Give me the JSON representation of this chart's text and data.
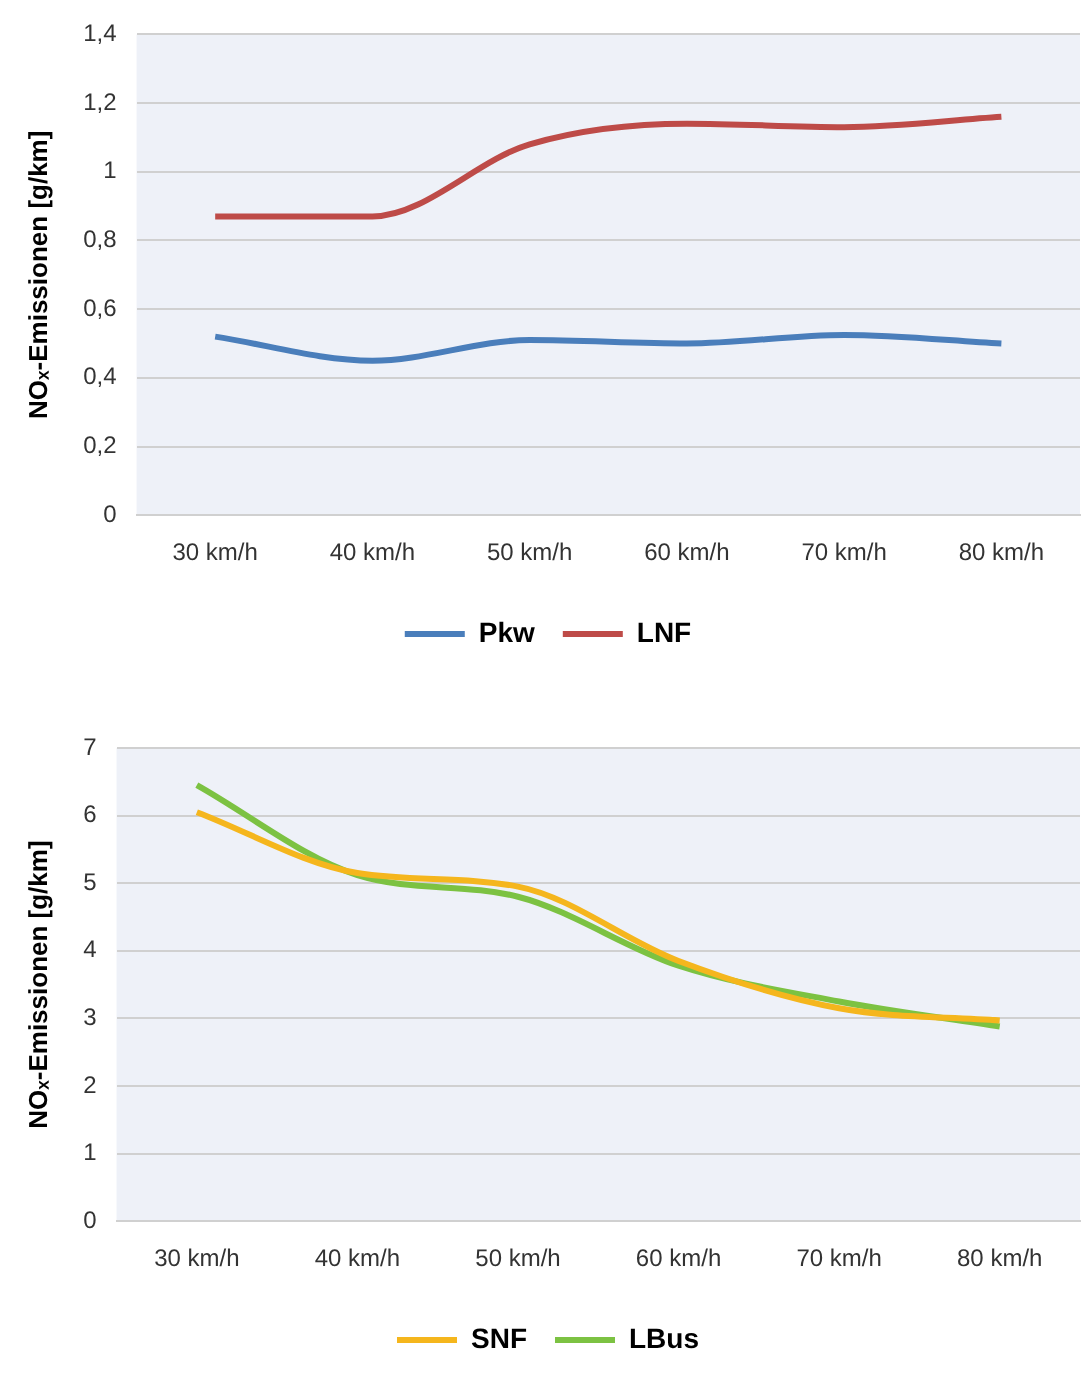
{
  "chart_data": [
    {
      "type": "line",
      "categories": [
        "30 km/h",
        "40 km/h",
        "50 km/h",
        "60 km/h",
        "70 km/h",
        "80 km/h"
      ],
      "series": [
        {
          "name": "Pkw",
          "color": "#4a7ebb",
          "values": [
            0.52,
            0.45,
            0.51,
            0.5,
            0.525,
            0.5
          ]
        },
        {
          "name": "LNF",
          "color": "#be4b48",
          "values": [
            0.87,
            0.87,
            1.08,
            1.14,
            1.13,
            1.16
          ]
        }
      ],
      "ylabel": "NOₓ-Emissionen [g/km]",
      "ylim": [
        0,
        1.4
      ],
      "yticks": [
        0,
        {
          "value": 0.2,
          "label": "0,2"
        },
        {
          "value": 0.4,
          "label": "0,4"
        },
        {
          "value": 0.6,
          "label": "0,6"
        },
        {
          "value": 0.8,
          "label": "0,8"
        },
        1,
        {
          "value": 1.2,
          "label": "1,2"
        },
        {
          "value": 1.4,
          "label": "1,4"
        }
      ],
      "grid": "y",
      "legend": "bottom",
      "marker": "none",
      "line_style": "solid"
    },
    {
      "type": "line",
      "categories": [
        "30 km/h",
        "40 km/h",
        "50 km/h",
        "60 km/h",
        "70 km/h",
        "80 km/h"
      ],
      "series": [
        {
          "name": "SNF",
          "color": "#f5b61d",
          "values": [
            6.05,
            5.15,
            4.95,
            3.85,
            3.15,
            2.97
          ]
        },
        {
          "name": "LBus",
          "color": "#7cc242",
          "values": [
            6.45,
            5.12,
            4.8,
            3.78,
            3.25,
            2.88
          ]
        }
      ],
      "ylabel": "NOₓ-Emissionen [g/km]",
      "ylim": [
        0,
        7
      ],
      "yticks": [
        0,
        1,
        2,
        3,
        4,
        5,
        6,
        7
      ],
      "grid": "y",
      "legend": "bottom",
      "marker": "none",
      "line_style": "solid"
    }
  ]
}
